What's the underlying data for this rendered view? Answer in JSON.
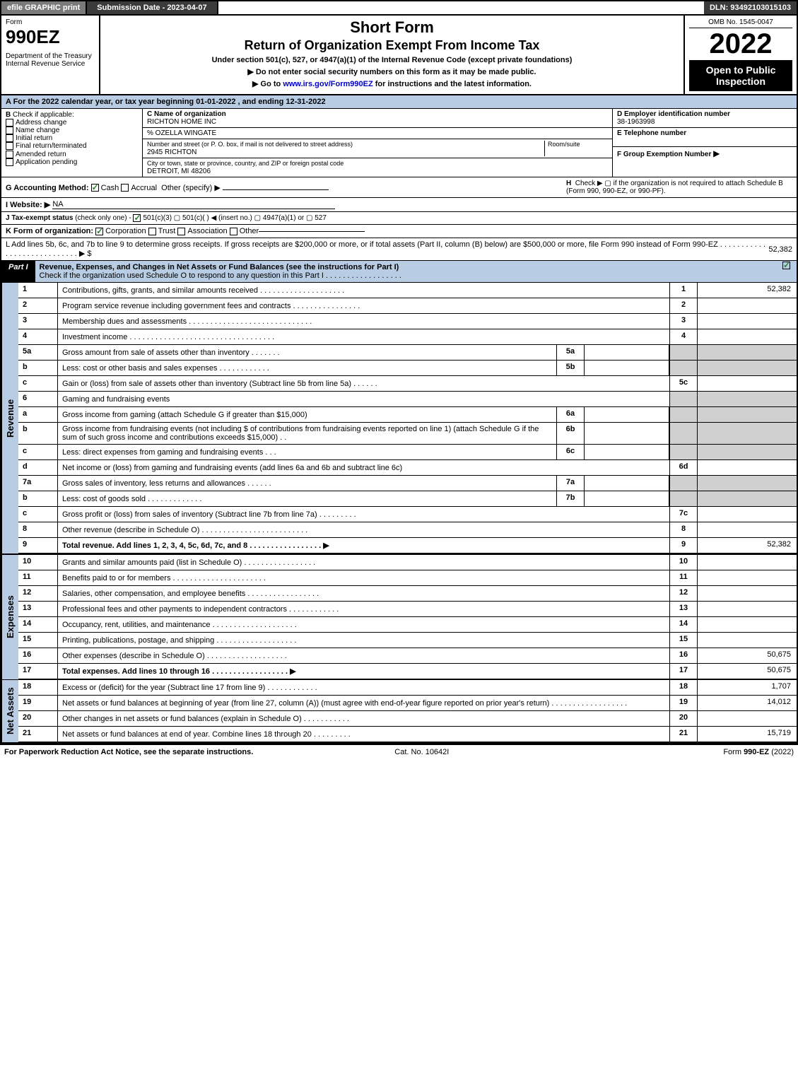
{
  "top": {
    "efile": "efile GRAPHIC print",
    "submission": "Submission Date - 2023-04-07",
    "dln": "DLN: 93492103015103"
  },
  "header": {
    "form_label": "Form",
    "form_code": "990EZ",
    "dept": "Department of the Treasury\nInternal Revenue Service",
    "title1": "Short Form",
    "title2": "Return of Organization Exempt From Income Tax",
    "sub1": "Under section 501(c), 527, or 4947(a)(1) of the Internal Revenue Code (except private foundations)",
    "sub2": "▶ Do not enter social security numbers on this form as it may be made public.",
    "sub3_pre": "▶ Go to ",
    "sub3_link": "www.irs.gov/Form990EZ",
    "sub3_post": " for instructions and the latest information.",
    "omb": "OMB No. 1545-0047",
    "year": "2022",
    "open": "Open to Public Inspection"
  },
  "sectionA": "A  For the 2022 calendar year, or tax year beginning 01-01-2022 , and ending 12-31-2022",
  "B": {
    "label": "B",
    "check": "Check if applicable:",
    "items": [
      "Address change",
      "Name change",
      "Initial return",
      "Final return/terminated",
      "Amended return",
      "Application pending"
    ]
  },
  "C": {
    "name_label": "C Name of organization",
    "name": "RICHTON HOME INC",
    "care_of": "% OZELLA WINGATE",
    "street_label": "Number and street (or P. O. box, if mail is not delivered to street address)",
    "room_label": "Room/suite",
    "street": "2945 RICHTON",
    "city_label": "City or town, state or province, country, and ZIP or foreign postal code",
    "city": "DETROIT, MI  48206"
  },
  "D": {
    "label": "D Employer identification number",
    "value": "38-1963998"
  },
  "E": {
    "label": "E Telephone number",
    "value": ""
  },
  "F": {
    "label": "F Group Exemption Number",
    "arrow": "▶"
  },
  "G": {
    "label": "G Accounting Method:",
    "cash": "Cash",
    "accrual": "Accrual",
    "other": "Other (specify) ▶"
  },
  "H": {
    "label": "H",
    "text": "Check ▶  ▢  if the organization is not required to attach Schedule B (Form 990, 990-EZ, or 990-PF)."
  },
  "I": {
    "label": "I Website: ▶",
    "value": "NA"
  },
  "J": {
    "label": "J Tax-exempt status",
    "text": "(check only one) -",
    "opts": "501(c)(3)  ▢ 501(c)(  ) ◀ (insert no.)  ▢ 4947(a)(1) or  ▢ 527"
  },
  "K": {
    "label": "K Form of organization:",
    "corp": "Corporation",
    "trust": "Trust",
    "assoc": "Association",
    "other": "Other"
  },
  "L": {
    "text": "L Add lines 5b, 6c, and 7b to line 9 to determine gross receipts. If gross receipts are $200,000 or more, or if total assets (Part II, column (B) below) are $500,000 or more, file Form 990 instead of Form 990-EZ .  .  .  .  .  .  .  .  .  .  .  .  .  .  .  .  .  .  .  .  .  .  .  .  .  .  .  .  ▶ $",
    "value": "52,382"
  },
  "part1": {
    "label": "Part I",
    "title": "Revenue, Expenses, and Changes in Net Assets or Fund Balances (see the instructions for Part I)",
    "check": "Check if the organization used Schedule O to respond to any question in this Part I .  .  .  .  .  .  .  .  .  .  .  .  .  .  .  .  .  ."
  },
  "sections": {
    "revenue_label": "Revenue",
    "expenses_label": "Expenses",
    "netassets_label": "Net Assets"
  },
  "rows": [
    {
      "n": "1",
      "d": "Contributions, gifts, grants, and similar amounts received .  .  .  .  .  .  .  .  .  .  .  .  .  .  .  .  .  .  .  .",
      "rn": "1",
      "v": "52,382"
    },
    {
      "n": "2",
      "d": "Program service revenue including government fees and contracts .  .  .  .  .  .  .  .  .  .  .  .  .  .  .  .",
      "rn": "2",
      "v": ""
    },
    {
      "n": "3",
      "d": "Membership dues and assessments .  .  .  .  .  .  .  .  .  .  .  .  .  .  .  .  .  .  .  .  .  .  .  .  .  .  .  .  .",
      "rn": "3",
      "v": ""
    },
    {
      "n": "4",
      "d": "Investment income .  .  .  .  .  .  .  .  .  .  .  .  .  .  .  .  .  .  .  .  .  .  .  .  .  .  .  .  .  .  .  .  .  .",
      "rn": "4",
      "v": ""
    },
    {
      "n": "5a",
      "d": "Gross amount from sale of assets other than inventory .  .  .  .  .  .  .",
      "sn": "5a",
      "sv": "",
      "shade": true
    },
    {
      "n": "b",
      "d": "Less: cost or other basis and sales expenses .  .  .  .  .  .  .  .  .  .  .  .",
      "sn": "5b",
      "sv": "",
      "shade": true
    },
    {
      "n": "c",
      "d": "Gain or (loss) from sale of assets other than inventory (Subtract line 5b from line 5a) .  .  .  .  .  .",
      "rn": "5c",
      "v": ""
    },
    {
      "n": "6",
      "d": "Gaming and fundraising events",
      "shade": true
    },
    {
      "n": "a",
      "d": "Gross income from gaming (attach Schedule G if greater than $15,000)",
      "sn": "6a",
      "sv": "",
      "shade": true
    },
    {
      "n": "b",
      "d": "Gross income from fundraising events (not including $                       of contributions from fundraising events reported on line 1) (attach Schedule G if the sum of such gross income and contributions exceeds $15,000)    .   .",
      "sn": "6b",
      "sv": "",
      "shade": true
    },
    {
      "n": "c",
      "d": "Less: direct expenses from gaming and fundraising events    .   .   .",
      "sn": "6c",
      "sv": "",
      "shade": true
    },
    {
      "n": "d",
      "d": "Net income or (loss) from gaming and fundraising events (add lines 6a and 6b and subtract line 6c)",
      "rn": "6d",
      "v": ""
    },
    {
      "n": "7a",
      "d": "Gross sales of inventory, less returns and allowances .  .  .  .  .  .",
      "sn": "7a",
      "sv": "",
      "shade": true
    },
    {
      "n": "b",
      "d": "Less: cost of goods sold          .   .   .   .   .   .   .   .   .   .   .   .   .",
      "sn": "7b",
      "sv": "",
      "shade": true
    },
    {
      "n": "c",
      "d": "Gross profit or (loss) from sales of inventory (Subtract line 7b from line 7a) .   .   .   .   .   .   .   .   .",
      "rn": "7c",
      "v": ""
    },
    {
      "n": "8",
      "d": "Other revenue (describe in Schedule O) .  .  .  .  .  .  .  .  .  .  .  .  .  .  .  .  .  .  .  .  .  .  .  .  .",
      "rn": "8",
      "v": ""
    },
    {
      "n": "9",
      "d": "Total revenue. Add lines 1, 2, 3, 4, 5c, 6d, 7c, and 8  .  .  .  .  .  .  .  .  .  .  .  .  .  .  .  .  .   ▶",
      "rn": "9",
      "v": "52,382",
      "bold": true
    }
  ],
  "exp_rows": [
    {
      "n": "10",
      "d": "Grants and similar amounts paid (list in Schedule O) .   .   .   .   .   .   .   .   .   .   .   .   .   .   .   .   .",
      "rn": "10",
      "v": ""
    },
    {
      "n": "11",
      "d": "Benefits paid to or for members       .   .   .   .   .   .   .   .   .   .   .   .   .   .   .   .   .   .   .   .   .   .",
      "rn": "11",
      "v": ""
    },
    {
      "n": "12",
      "d": "Salaries, other compensation, and employee benefits .   .   .   .   .   .   .   .   .   .   .   .   .   .   .   .   .",
      "rn": "12",
      "v": ""
    },
    {
      "n": "13",
      "d": "Professional fees and other payments to independent contractors .   .   .   .   .   .   .   .   .   .   .   .",
      "rn": "13",
      "v": ""
    },
    {
      "n": "14",
      "d": "Occupancy, rent, utilities, and maintenance .   .   .   .   .   .   .   .   .   .   .   .   .   .   .   .   .   .   .   .",
      "rn": "14",
      "v": ""
    },
    {
      "n": "15",
      "d": "Printing, publications, postage, and shipping .   .   .   .   .   .   .   .   .   .   .   .   .   .   .   .   .   .   .",
      "rn": "15",
      "v": ""
    },
    {
      "n": "16",
      "d": "Other expenses (describe in Schedule O)      .   .   .   .   .   .   .   .   .   .   .   .   .   .   .   .   .   .   .",
      "rn": "16",
      "v": "50,675"
    },
    {
      "n": "17",
      "d": "Total expenses. Add lines 10 through 16      .   .   .   .   .   .   .   .   .   .   .   .   .   .   .   .   .   .   ▶",
      "rn": "17",
      "v": "50,675",
      "bold": true
    }
  ],
  "na_rows": [
    {
      "n": "18",
      "d": "Excess or (deficit) for the year (Subtract line 17 from line 9)        .   .   .   .   .   .   .   .   .   .   .   .",
      "rn": "18",
      "v": "1,707"
    },
    {
      "n": "19",
      "d": "Net assets or fund balances at beginning of year (from line 27, column (A)) (must agree with end-of-year figure reported on prior year's return) .   .   .   .   .   .   .   .   .   .   .   .   .   .   .   .   .   .",
      "rn": "19",
      "v": "14,012"
    },
    {
      "n": "20",
      "d": "Other changes in net assets or fund balances (explain in Schedule O) .   .   .   .   .   .   .   .   .   .   .",
      "rn": "20",
      "v": ""
    },
    {
      "n": "21",
      "d": "Net assets or fund balances at end of year. Combine lines 18 through 20 .   .   .   .   .   .   .   .   .",
      "rn": "21",
      "v": "15,719"
    }
  ],
  "footer": {
    "left": "For Paperwork Reduction Act Notice, see the separate instructions.",
    "mid": "Cat. No. 10642I",
    "right": "Form 990-EZ (2022)"
  }
}
